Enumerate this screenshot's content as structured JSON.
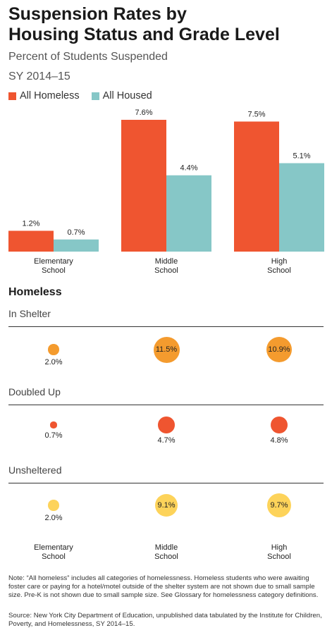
{
  "title_line1": "Suspension Rates by",
  "title_line2": "Housing Status and Grade Level",
  "subtitle": "Percent of Students Suspended",
  "year": "SY 2014–15",
  "legend": [
    {
      "label": "All Homeless",
      "color": "#ef5530"
    },
    {
      "label": "All Housed",
      "color": "#86c7c7"
    }
  ],
  "chart_data": [
    {
      "type": "bar",
      "title": "Suspension Rates by Housing Status and Grade Level",
      "subtitle": "Percent of Students Suspended",
      "categories": [
        [
          "Elementary",
          "School"
        ],
        [
          "Middle",
          "School"
        ],
        [
          "High",
          "School"
        ]
      ],
      "series": [
        {
          "name": "All Homeless",
          "values": [
            1.2,
            7.6,
            7.5
          ],
          "labels": [
            "1.2%",
            "7.6%",
            "7.5%"
          ],
          "color": "#ef5530"
        },
        {
          "name": "All Housed",
          "values": [
            0.7,
            4.4,
            5.1
          ],
          "labels": [
            "0.7%",
            "4.4%",
            "5.1%"
          ],
          "color": "#86c7c7"
        }
      ],
      "ylim": [
        0,
        8
      ],
      "grid": false,
      "legend_position": "top-left"
    },
    {
      "type": "scatter",
      "section_title": "Homeless",
      "categories": [
        [
          "Elementary",
          "School"
        ],
        [
          "Middle",
          "School"
        ],
        [
          "High",
          "School"
        ]
      ],
      "rows": [
        {
          "name": "In Shelter",
          "values": [
            2.0,
            11.5,
            10.9
          ],
          "labels": [
            "2.0%",
            "11.5%",
            "10.9%"
          ],
          "color": "#f49b2e"
        },
        {
          "name": "Doubled Up",
          "values": [
            0.7,
            4.7,
            4.8
          ],
          "labels": [
            "0.7%",
            "4.7%",
            "4.8%"
          ],
          "color": "#ef5530"
        },
        {
          "name": "Unsheltered",
          "values": [
            2.0,
            9.1,
            9.7
          ],
          "labels": [
            "2.0%",
            "9.1%",
            "9.7%"
          ],
          "color": "#fdd35a"
        }
      ]
    }
  ],
  "note": "Note: “All homeless” includes all categories of homelessness. Homeless students who were awaiting foster care or paying for a hotel/motel outside of the shelter system are not shown due to small sample size. Pre-K is not shown due to small sample size. See Glossary for homelessness category definitions.",
  "source": "Source: New York City Department of Education, unpublished data tabulated by the Institute for Children, Poverty, and Homelessness, SY 2014–15."
}
